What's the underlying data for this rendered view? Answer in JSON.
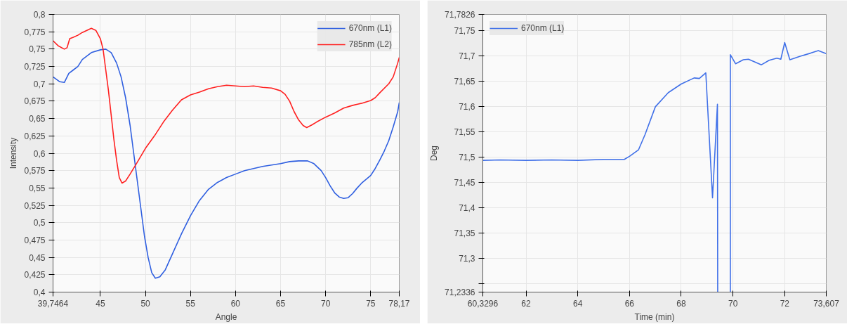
{
  "chart_data": [
    {
      "type": "line",
      "xlabel": "Angle",
      "ylabel": "Intensity",
      "xlim": [
        39.7464,
        78.17
      ],
      "ylim": [
        0.4,
        0.8
      ],
      "xticks": [
        {
          "value": 39.7464,
          "label": "39,7464"
        },
        45,
        50,
        55,
        60,
        65,
        70,
        75,
        {
          "value": 78.17,
          "label": "78,17"
        }
      ],
      "yticks": [
        {
          "value": 0.4,
          "label": "0,4"
        },
        {
          "value": 0.425,
          "label": "0,425"
        },
        {
          "value": 0.45,
          "label": "0,45"
        },
        {
          "value": 0.475,
          "label": "0,475"
        },
        {
          "value": 0.5,
          "label": "0,5"
        },
        {
          "value": 0.525,
          "label": "0,525"
        },
        {
          "value": 0.55,
          "label": "0,55"
        },
        {
          "value": 0.575,
          "label": "0,575"
        },
        {
          "value": 0.6,
          "label": "0,6"
        },
        {
          "value": 0.625,
          "label": "0,625"
        },
        {
          "value": 0.65,
          "label": "0,65"
        },
        {
          "value": 0.675,
          "label": "0,675"
        },
        {
          "value": 0.7,
          "label": "0,7"
        },
        {
          "value": 0.725,
          "label": "0,725"
        },
        {
          "value": 0.75,
          "label": "0,75"
        },
        {
          "value": 0.775,
          "label": "0,775"
        },
        {
          "value": 0.8,
          "label": "0,8"
        }
      ],
      "grid": true,
      "legend": "top right",
      "marker": "none",
      "line_style": "solid",
      "series": [
        {
          "name": "670nm (L1)",
          "color": "#2f5fe0",
          "x": [
            39.75,
            40.5,
            41,
            41.5,
            42,
            42.5,
            43,
            44,
            45,
            45.6,
            46.2,
            46.8,
            47.3,
            47.8,
            48.3,
            48.7,
            49.1,
            49.5,
            49.9,
            50.3,
            50.7,
            51.1,
            51.6,
            52.2,
            53,
            54,
            55,
            56,
            57,
            58,
            59,
            60,
            61,
            62,
            63,
            64,
            65,
            66,
            67,
            68,
            68.7,
            69.5,
            70,
            70.5,
            71,
            71.5,
            72,
            72.5,
            73,
            73.5,
            74,
            75,
            75.5,
            76,
            76.5,
            77,
            77.5,
            78,
            78.17
          ],
          "values": [
            0.71,
            0.703,
            0.702,
            0.715,
            0.72,
            0.725,
            0.735,
            0.745,
            0.749,
            0.75,
            0.745,
            0.73,
            0.71,
            0.68,
            0.64,
            0.6,
            0.56,
            0.52,
            0.48,
            0.45,
            0.428,
            0.42,
            0.422,
            0.432,
            0.455,
            0.484,
            0.51,
            0.532,
            0.548,
            0.558,
            0.565,
            0.57,
            0.575,
            0.578,
            0.581,
            0.583,
            0.585,
            0.588,
            0.589,
            0.589,
            0.585,
            0.575,
            0.565,
            0.553,
            0.543,
            0.537,
            0.535,
            0.536,
            0.542,
            0.55,
            0.557,
            0.568,
            0.578,
            0.59,
            0.603,
            0.618,
            0.638,
            0.66,
            0.673
          ]
        },
        {
          "name": "785nm (L2)",
          "color": "#ff2020",
          "x": [
            39.75,
            40.3,
            41,
            41.3,
            41.6,
            42,
            42.5,
            43,
            43.5,
            44,
            44.5,
            45,
            45.3,
            45.6,
            45.9,
            46.2,
            46.5,
            46.8,
            47.1,
            47.4,
            47.8,
            48.3,
            49,
            50,
            51,
            52,
            53,
            54,
            55,
            56,
            57,
            58,
            59,
            60,
            61,
            62,
            63,
            64,
            65,
            65.5,
            66,
            66.5,
            67,
            67.5,
            67.9,
            68.5,
            69,
            70,
            71,
            72,
            73,
            74,
            75,
            75.5,
            76,
            77,
            77.5,
            78,
            78.17
          ],
          "values": [
            0.762,
            0.755,
            0.75,
            0.752,
            0.765,
            0.767,
            0.77,
            0.774,
            0.777,
            0.78,
            0.777,
            0.765,
            0.75,
            0.72,
            0.69,
            0.655,
            0.62,
            0.59,
            0.565,
            0.557,
            0.56,
            0.57,
            0.585,
            0.607,
            0.625,
            0.645,
            0.662,
            0.677,
            0.684,
            0.688,
            0.693,
            0.696,
            0.698,
            0.697,
            0.696,
            0.697,
            0.695,
            0.694,
            0.69,
            0.685,
            0.675,
            0.66,
            0.648,
            0.64,
            0.637,
            0.641,
            0.645,
            0.652,
            0.658,
            0.665,
            0.669,
            0.672,
            0.676,
            0.68,
            0.687,
            0.7,
            0.71,
            0.73,
            0.738
          ]
        }
      ]
    },
    {
      "type": "line",
      "xlabel": "Time (min)",
      "ylabel": "Deg",
      "xlim": [
        60.3296,
        73.607
      ],
      "ylim": [
        71.2336,
        71.7826
      ],
      "xticks": [
        {
          "value": 60.3296,
          "label": "60,3296"
        },
        62,
        64,
        66,
        68,
        70,
        72,
        {
          "value": 73.607,
          "label": "73,607"
        }
      ],
      "yticks": [
        {
          "value": 71.2336,
          "label": "71,2336"
        },
        {
          "value": 71.25,
          "label": null
        },
        {
          "value": 71.3,
          "label": "71,3"
        },
        {
          "value": 71.35,
          "label": "71,35"
        },
        {
          "value": 71.4,
          "label": "71,4"
        },
        {
          "value": 71.45,
          "label": "71,45"
        },
        {
          "value": 71.5,
          "label": "71,5"
        },
        {
          "value": 71.55,
          "label": "71,55"
        },
        {
          "value": 71.6,
          "label": "71,6"
        },
        {
          "value": 71.65,
          "label": "71,65"
        },
        {
          "value": 71.7,
          "label": "71,7"
        },
        {
          "value": 71.75,
          "label": "71,75"
        },
        {
          "value": 71.7826,
          "label": "71,7826"
        }
      ],
      "grid": true,
      "legend": "top left",
      "marker": "none",
      "line_style": "solid",
      "series": [
        {
          "name": "670nm (L1)",
          "color": "#4070e8",
          "x": [
            60.33,
            61,
            62,
            63,
            64,
            65,
            65.8,
            66,
            66.35,
            66.6,
            67,
            67.5,
            68,
            68.5,
            68.7,
            68.95,
            69.21,
            69.4,
            69.41,
            69.6,
            69.9,
            69.9,
            70.1,
            70.4,
            70.6,
            71.1,
            71.4,
            71.7,
            71.85,
            72.0,
            72.2,
            72.6,
            73.0,
            73.3,
            73.6
          ],
          "values": [
            71.494,
            71.495,
            71.494,
            71.495,
            71.494,
            71.496,
            71.496,
            71.502,
            71.515,
            71.545,
            71.6,
            71.628,
            71.645,
            71.657,
            71.656,
            71.667,
            71.42,
            71.605,
            71.2336,
            null,
            71.2336,
            71.703,
            71.685,
            71.693,
            71.694,
            71.683,
            71.692,
            71.696,
            71.694,
            71.727,
            71.693,
            71.7,
            71.706,
            71.711,
            71.705
          ]
        }
      ]
    }
  ]
}
